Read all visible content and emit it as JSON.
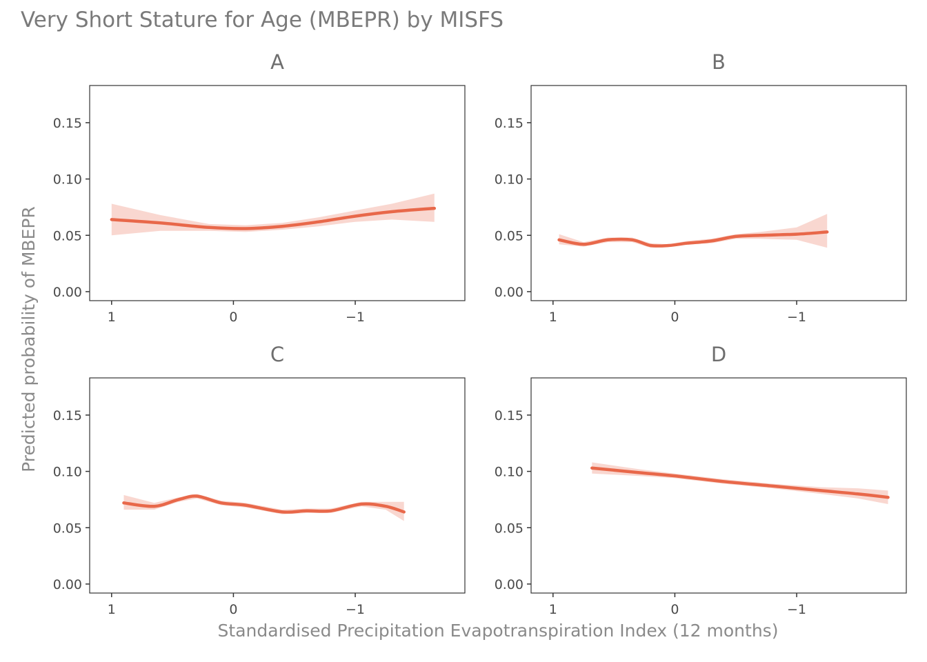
{
  "chart_data": {
    "type": "line",
    "title": "Very Short Stature for Age (MBEPR) by MISFS",
    "xlabel": "Standardised Precipitation Evapotranspiration Index (12 months)",
    "ylabel": "Predicted probability of MBEPR",
    "x_reversed": true,
    "xlim": [
      1.18,
      -1.9
    ],
    "ylim": [
      -0.008,
      0.183
    ],
    "x_ticks": [
      1,
      0,
      -1
    ],
    "x_tick_labels": [
      "1",
      "0",
      "−1"
    ],
    "y_ticks": [
      0.0,
      0.05,
      0.1,
      0.15
    ],
    "y_tick_labels": [
      "0.00",
      "0.05",
      "0.10",
      "0.15"
    ],
    "grid": false,
    "colors": {
      "line": "#E8684A",
      "ribbon": "#F8D3CB"
    },
    "panels": [
      {
        "label": "A",
        "x": [
          1.0,
          0.6,
          0.2,
          -0.1,
          -0.4,
          -0.7,
          -1.0,
          -1.3,
          -1.65
        ],
        "y": [
          0.064,
          0.061,
          0.057,
          0.056,
          0.058,
          0.062,
          0.067,
          0.071,
          0.074
        ],
        "lower": [
          0.05,
          0.054,
          0.054,
          0.053,
          0.055,
          0.058,
          0.062,
          0.064,
          0.062
        ],
        "upper": [
          0.078,
          0.068,
          0.06,
          0.059,
          0.061,
          0.066,
          0.072,
          0.078,
          0.087
        ]
      },
      {
        "label": "B",
        "x": [
          0.95,
          0.75,
          0.55,
          0.35,
          0.2,
          0.05,
          -0.1,
          -0.3,
          -0.5,
          -0.7,
          -1.0,
          -1.25
        ],
        "y": [
          0.046,
          0.042,
          0.046,
          0.046,
          0.041,
          0.041,
          0.043,
          0.045,
          0.049,
          0.05,
          0.051,
          0.053
        ],
        "lower": [
          0.042,
          0.04,
          0.044,
          0.044,
          0.039,
          0.04,
          0.042,
          0.043,
          0.047,
          0.047,
          0.046,
          0.039
        ],
        "upper": [
          0.051,
          0.044,
          0.048,
          0.048,
          0.043,
          0.042,
          0.045,
          0.047,
          0.051,
          0.053,
          0.057,
          0.069
        ]
      },
      {
        "label": "C",
        "x": [
          0.9,
          0.65,
          0.45,
          0.3,
          0.1,
          -0.1,
          -0.4,
          -0.6,
          -0.8,
          -1.05,
          -1.25,
          -1.4
        ],
        "y": [
          0.072,
          0.069,
          0.075,
          0.078,
          0.072,
          0.07,
          0.064,
          0.065,
          0.065,
          0.071,
          0.069,
          0.064
        ],
        "lower": [
          0.066,
          0.066,
          0.073,
          0.076,
          0.07,
          0.068,
          0.062,
          0.063,
          0.063,
          0.069,
          0.066,
          0.056
        ],
        "upper": [
          0.079,
          0.072,
          0.077,
          0.08,
          0.074,
          0.072,
          0.066,
          0.067,
          0.067,
          0.073,
          0.073,
          0.073
        ]
      },
      {
        "label": "D",
        "x": [
          0.68,
          0.3,
          0.0,
          -0.4,
          -0.8,
          -1.2,
          -1.5,
          -1.75
        ],
        "y": [
          0.103,
          0.099,
          0.096,
          0.091,
          0.087,
          0.083,
          0.08,
          0.077
        ],
        "lower": [
          0.098,
          0.096,
          0.094,
          0.089,
          0.085,
          0.08,
          0.076,
          0.071
        ],
        "upper": [
          0.108,
          0.102,
          0.098,
          0.093,
          0.089,
          0.086,
          0.085,
          0.083
        ]
      }
    ]
  }
}
